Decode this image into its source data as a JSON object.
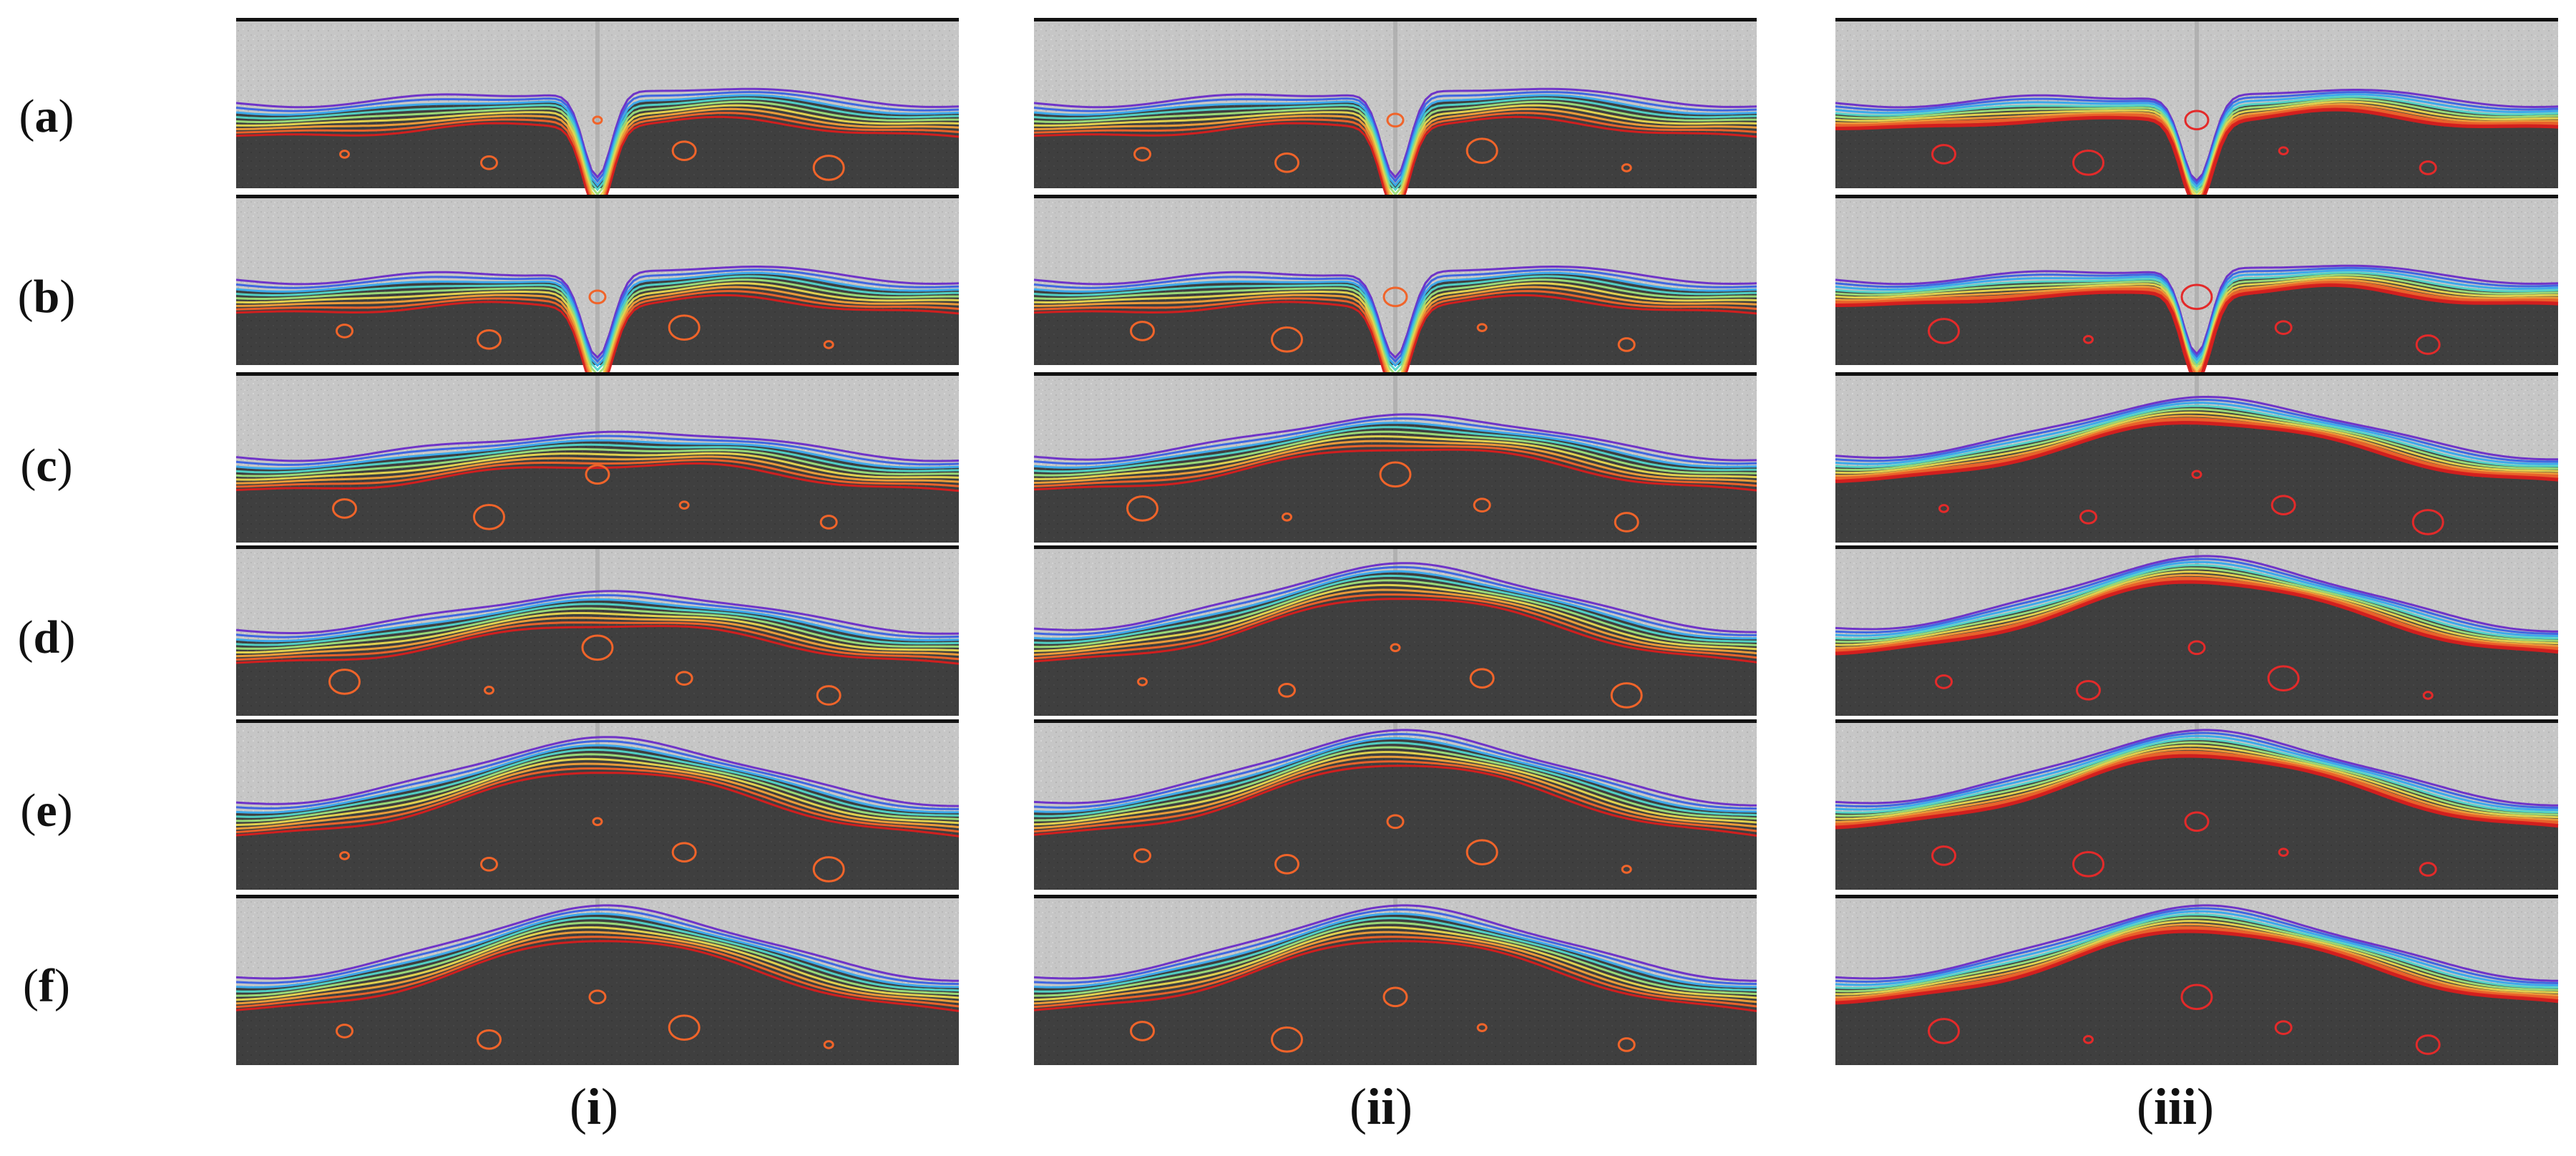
{
  "figure": {
    "row_labels": [
      {
        "open": "(",
        "letter": "a",
        "close": ")"
      },
      {
        "open": "(",
        "letter": "b",
        "close": ")"
      },
      {
        "open": "(",
        "letter": "c",
        "close": ")"
      },
      {
        "open": "(",
        "letter": "d",
        "close": ")"
      },
      {
        "open": "(",
        "letter": "e",
        "close": ")"
      },
      {
        "open": "(",
        "letter": "f",
        "close": ")"
      }
    ],
    "column_labels": [
      {
        "open": "(",
        "numeral": "i",
        "close": ")"
      },
      {
        "open": "(",
        "numeral": "ii",
        "close": ")"
      },
      {
        "open": "(",
        "numeral": "iii",
        "close": ")"
      }
    ],
    "colors": {
      "background_top": "#c9c9c9",
      "background_dark": "#3e3e3e",
      "contour_ramp": [
        "#d81e1e",
        "#f0642a",
        "#f2a03a",
        "#e8d850",
        "#9ee07a",
        "#52d6c8",
        "#36a8ec",
        "#3a62e2",
        "#6a2cc8"
      ]
    },
    "meniscus_shape_levels": [
      [
        0.1,
        0.1,
        0.05
      ],
      [
        0.05,
        0.05,
        0.1
      ],
      [
        0.3,
        0.55,
        0.8
      ],
      [
        0.5,
        0.9,
        1.0
      ],
      [
        0.9,
        1.0,
        1.0
      ],
      [
        1.0,
        1.0,
        1.0
      ]
    ]
  }
}
